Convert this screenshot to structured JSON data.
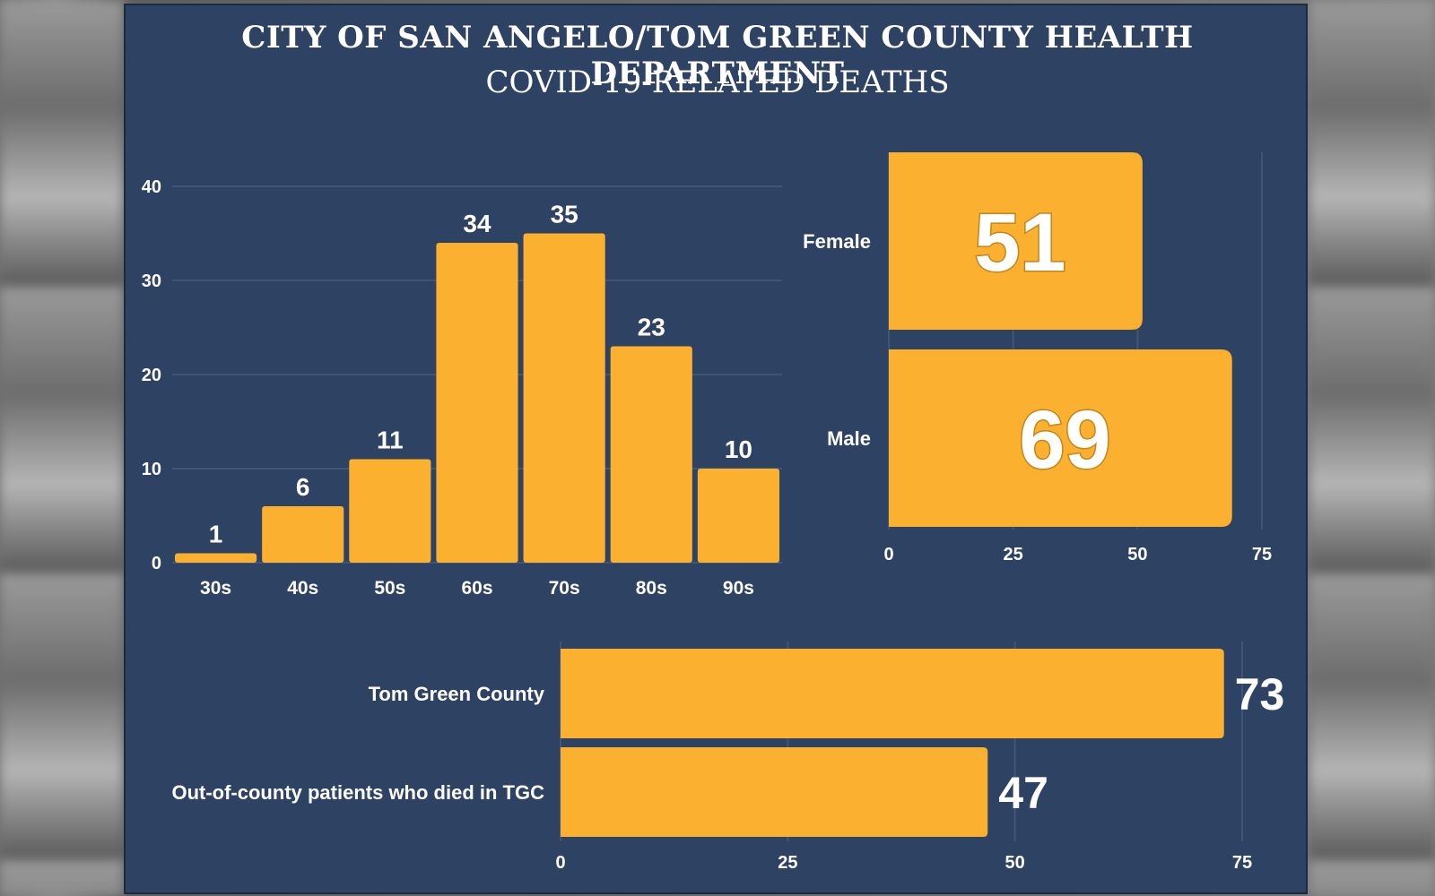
{
  "header": {
    "title": "CITY OF SAN ANGELO/TOM GREEN COUNTY HEALTH DEPARTMENT",
    "subtitle": "COVID-19-RELATED DEATHS"
  },
  "colors": {
    "panel": "#2e4263",
    "bar": "#fbb02f",
    "grid": "#3f5578",
    "text": "#ffffff"
  },
  "chart_data": [
    {
      "type": "bar",
      "id": "age",
      "title": "",
      "categories": [
        "30s",
        "40s",
        "50s",
        "60s",
        "70s",
        "80s",
        "90s"
      ],
      "values": [
        1,
        6,
        11,
        34,
        35,
        23,
        10
      ],
      "ylim": [
        0,
        40
      ],
      "yticks": [
        0,
        10,
        20,
        30,
        40
      ],
      "grid": true
    },
    {
      "type": "bar",
      "id": "gender",
      "orientation": "horizontal",
      "categories": [
        "Female",
        "Male"
      ],
      "values": [
        51,
        69
      ],
      "xlim": [
        0,
        75
      ],
      "xticks": [
        0,
        25,
        50,
        75
      ],
      "grid": true
    },
    {
      "type": "bar",
      "id": "residence",
      "orientation": "horizontal",
      "categories": [
        "Tom Green County",
        "Out-of-county patients who died in TGC"
      ],
      "values": [
        73,
        47
      ],
      "xlim": [
        0,
        75
      ],
      "xticks": [
        0,
        25,
        50,
        75
      ],
      "grid": true
    }
  ]
}
